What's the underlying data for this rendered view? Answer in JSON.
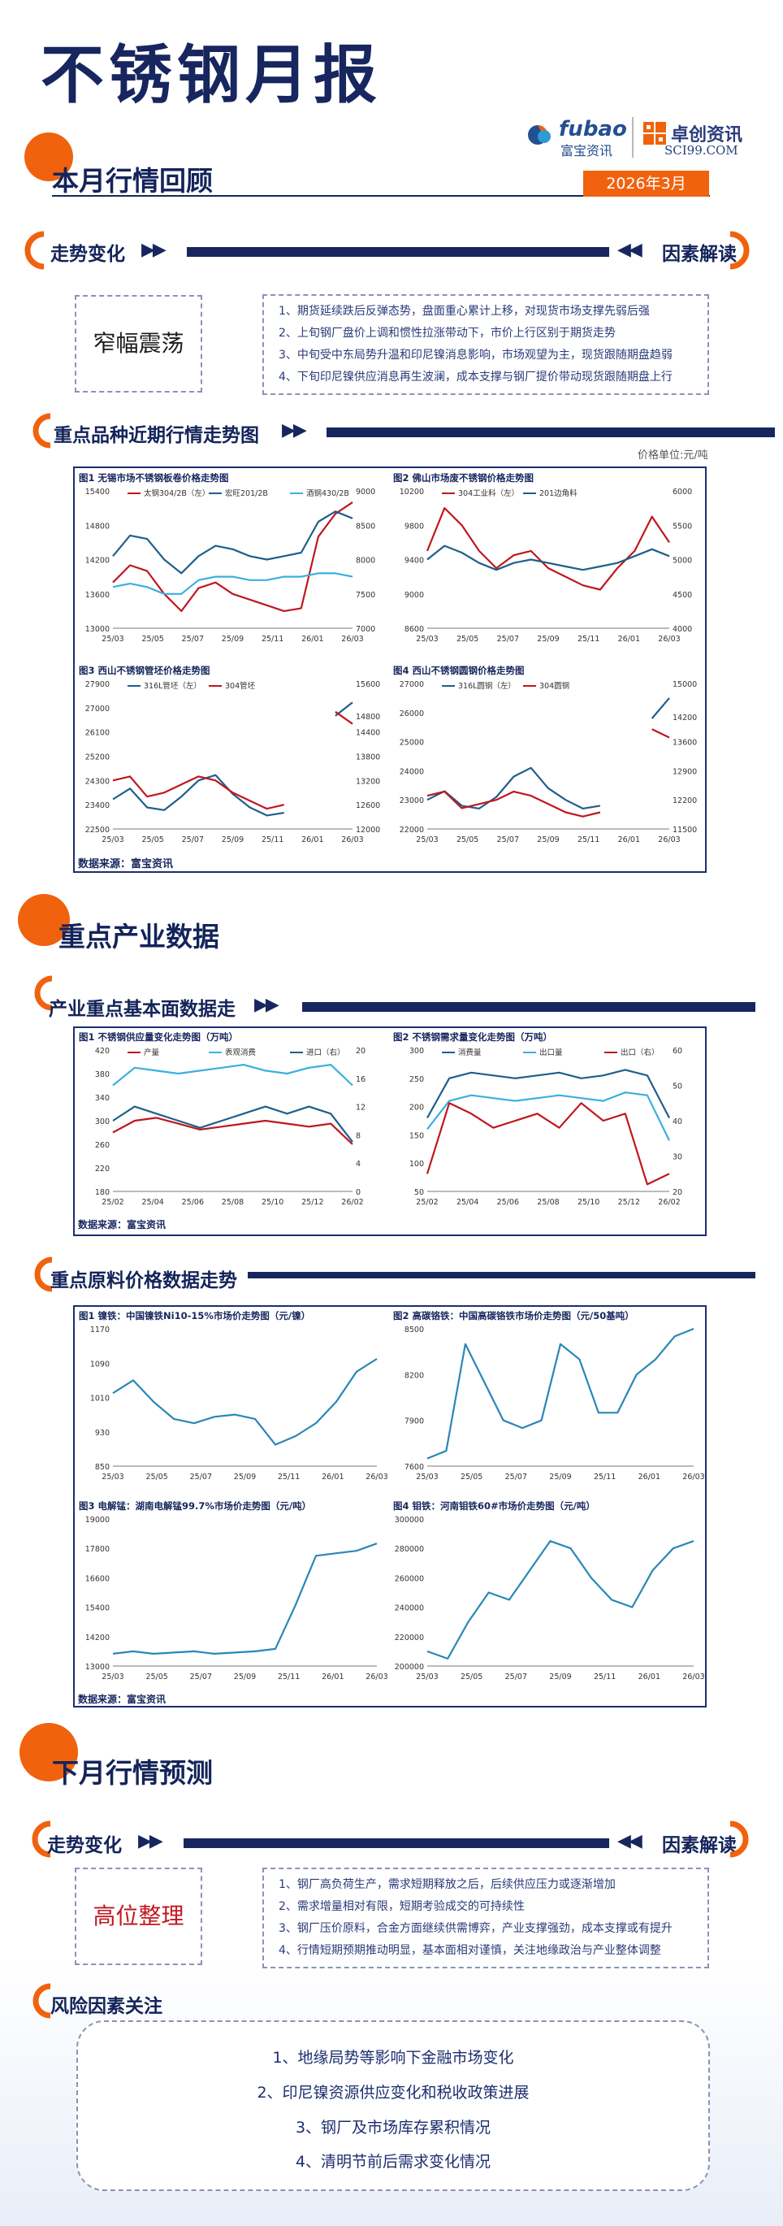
{
  "header": {
    "title": "不锈钢月报",
    "brand_fubao": "fubao",
    "brand_fubao_cn": "富宝资讯",
    "brand_sci": "卓创资讯",
    "brand_sci_url": "SCI99.COM",
    "date": "2026年3月"
  },
  "review": {
    "heading": "本月行情回顾",
    "trend_label": "走势变化",
    "factor_label": "因素解读",
    "trend_word": "窄幅震荡",
    "factors": [
      "1、期货延续跌后反弹态势，盘面重心累计上移，对现货市场支撑先弱后强",
      "2、上旬钢厂盘价上调和惯性拉涨带动下，市价上行区别于期货走势",
      "3、中旬受中东局势升温和印尼镍消息影响，市场观望为主，现货跟随期盘趋弱",
      "4、下旬印尼镍供应消息再生波澜，成本支撑与钢厂提价带动现货跟随期盘上行"
    ],
    "price_heading": "重点品种近期行情走势图",
    "unit_note": "价格单位:元/吨",
    "source": "数据来源：富宝资讯"
  },
  "industry": {
    "heading": "重点产业数据",
    "fundamental_heading": "产业重点基本面数据走",
    "source": "数据来源：富宝资讯",
    "raw_heading": "重点原料价格数据走势",
    "raw_source": "数据来源：富宝资讯"
  },
  "forecast": {
    "heading": "下月行情预测",
    "trend_label": "走势变化",
    "factor_label": "因素解读",
    "trend_word": "高位整理",
    "factors": [
      "1、钢厂高负荷生产，需求短期释放之后，后续供应压力或逐渐增加",
      "2、需求增量相对有限，短期考验成交的可持续性",
      "3、钢厂压价原料，合金方面继续供需博弈，产业支撑强劲，成本支撑或有提升",
      "4、行情短期预期推动明显，基本面相对谨慎，关注地缘政治与产业整体调整"
    ],
    "risk_heading": "风险因素关注",
    "risks": [
      "1、地缘局势等影响下金融市场变化",
      "2、印尼镍资源供应变化和税收政策进展",
      "3、钢厂及市场库存累积情况",
      "4、清明节前后需求变化情况"
    ]
  },
  "chart_data": [
    {
      "type": "line",
      "title": "图1 无锡市场不锈钢板卷价格走势图",
      "x_ticks": [
        "25/03",
        "25/05",
        "25/07",
        "25/09",
        "25/11",
        "26/01",
        "26/03"
      ],
      "left_ticks": [
        "15400",
        "14800",
        "14200",
        "13600",
        "13000"
      ],
      "right_ticks": [
        "9000",
        "8500",
        "8000",
        "7500",
        "7000"
      ],
      "series": [
        {
          "name": "太钢304/2B（左）",
          "color": "#c0171f",
          "axis": "left",
          "values": [
            13800,
            14100,
            14000,
            13600,
            13300,
            13700,
            13800,
            13600,
            13500,
            13400,
            13300,
            13350,
            14600,
            15000,
            15200
          ]
        },
        {
          "name": "宏旺201/2B",
          "color": "#1f5f8b",
          "axis": "right",
          "values": [
            8050,
            8350,
            8300,
            8000,
            7800,
            8050,
            8200,
            8150,
            8050,
            8000,
            8050,
            8100,
            8550,
            8700,
            8600
          ]
        },
        {
          "name": "酒钢430/2B",
          "color": "#3ab0de",
          "axis": "right",
          "values": [
            7600,
            7650,
            7600,
            7500,
            7500,
            7700,
            7750,
            7750,
            7700,
            7700,
            7750,
            7750,
            7800,
            7800,
            7750
          ]
        }
      ]
    },
    {
      "type": "line",
      "title": "图2 佛山市场废不锈钢价格走势图",
      "x_ticks": [
        "25/03",
        "25/05",
        "25/07",
        "25/09",
        "25/11",
        "26/01",
        "26/03"
      ],
      "left_ticks": [
        "10200",
        "9800",
        "9400",
        "9000",
        "8600"
      ],
      "right_ticks": [
        "6000",
        "5500",
        "5000",
        "4500",
        "4000"
      ],
      "series": [
        {
          "name": "304工业料（左）",
          "color": "#c0171f",
          "axis": "left",
          "values": [
            9500,
            10000,
            9800,
            9500,
            9300,
            9450,
            9500,
            9300,
            9200,
            9100,
            9050,
            9300,
            9500,
            9900,
            9600
          ]
        },
        {
          "name": "201边角料",
          "color": "#1f5f8b",
          "axis": "right",
          "values": [
            5000,
            5200,
            5100,
            4950,
            4850,
            4950,
            5000,
            4950,
            4900,
            4850,
            4900,
            4950,
            5050,
            5150,
            5050
          ]
        }
      ]
    },
    {
      "type": "line",
      "title": "图3 西山不锈钢管坯价格走势图",
      "x_ticks": [
        "25/03",
        "25/05",
        "25/07",
        "25/09",
        "25/11",
        "26/01",
        "26/03"
      ],
      "left_ticks": [
        "27900",
        "27000",
        "26100",
        "25200",
        "24300",
        "23400",
        "22500"
      ],
      "right_ticks": [
        "15600",
        "14800",
        "14400",
        "13800",
        "13200",
        "12600",
        "12000"
      ],
      "series": [
        {
          "name": "316L管坯（左）",
          "color": "#1f5f8b",
          "axis": "left",
          "values": [
            23600,
            24000,
            23300,
            23200,
            23700,
            24300,
            24500,
            23800,
            23300,
            23000,
            23100,
            null,
            null,
            26700,
            27200
          ]
        },
        {
          "name": "304管坯",
          "color": "#c0171f",
          "axis": "right",
          "values": [
            13200,
            13300,
            12800,
            12900,
            13100,
            13300,
            13200,
            12900,
            12700,
            12500,
            12600,
            null,
            null,
            14900,
            14600
          ]
        }
      ]
    },
    {
      "type": "line",
      "title": "图4 西山不锈钢圆钢价格走势图",
      "x_ticks": [
        "25/03",
        "25/05",
        "25/07",
        "25/09",
        "25/11",
        "26/01",
        "26/03"
      ],
      "left_ticks": [
        "27000",
        "26000",
        "25000",
        "24000",
        "23000",
        "22000"
      ],
      "right_ticks": [
        "15000",
        "14200",
        "13600",
        "12900",
        "12200",
        "11500"
      ],
      "series": [
        {
          "name": "316L圆钢（左）",
          "color": "#1f5f8b",
          "axis": "left",
          "values": [
            23000,
            23300,
            22800,
            22700,
            23100,
            23800,
            24100,
            23400,
            23000,
            22700,
            22800,
            null,
            null,
            25800,
            26500
          ]
        },
        {
          "name": "304圆钢",
          "color": "#c0171f",
          "axis": "right",
          "values": [
            12300,
            12400,
            12000,
            12100,
            12200,
            12400,
            12300,
            12100,
            11900,
            11800,
            11900,
            null,
            null,
            13900,
            13700
          ]
        }
      ]
    },
    {
      "type": "line",
      "title": "图1 不锈钢供应量变化走势图（万吨）",
      "x_ticks": [
        "25/02",
        "25/04",
        "25/06",
        "25/08",
        "25/10",
        "25/12",
        "26/02"
      ],
      "left_ticks": [
        "420",
        "380",
        "340",
        "300",
        "260",
        "220",
        "180"
      ],
      "right_ticks": [
        "20",
        "16",
        "12",
        "8",
        "4",
        "0"
      ],
      "series": [
        {
          "name": "产量",
          "color": "#c0171f",
          "axis": "left",
          "values": [
            280,
            300,
            305,
            295,
            285,
            290,
            295,
            300,
            295,
            290,
            295,
            260
          ]
        },
        {
          "name": "表观消费",
          "color": "#3ab0de",
          "axis": "left",
          "values": [
            360,
            390,
            385,
            380,
            385,
            390,
            395,
            385,
            380,
            390,
            395,
            360
          ]
        },
        {
          "name": "进口（右）",
          "color": "#1f5f8b",
          "axis": "right",
          "values": [
            10,
            12,
            11,
            10,
            9,
            10,
            11,
            12,
            11,
            12,
            11,
            7
          ]
        }
      ]
    },
    {
      "type": "line",
      "title": "图2 不锈钢需求量变化走势图（万吨）",
      "x_ticks": [
        "25/02",
        "25/04",
        "25/06",
        "25/08",
        "25/10",
        "25/12",
        "26/02"
      ],
      "left_ticks": [
        "300",
        "250",
        "200",
        "150",
        "100",
        "50"
      ],
      "right_ticks": [
        "60",
        "50",
        "40",
        "30",
        "20"
      ],
      "series": [
        {
          "name": "消费量",
          "color": "#1f5f8b",
          "axis": "left",
          "values": [
            180,
            250,
            260,
            255,
            250,
            255,
            260,
            250,
            255,
            265,
            255,
            180
          ]
        },
        {
          "name": "出口量",
          "color": "#3ab0de",
          "axis": "left",
          "values": [
            160,
            210,
            220,
            215,
            210,
            215,
            220,
            215,
            210,
            225,
            220,
            140
          ]
        },
        {
          "name": "出口（右）",
          "color": "#c0171f",
          "axis": "right",
          "values": [
            25,
            45,
            42,
            38,
            40,
            42,
            38,
            45,
            40,
            42,
            22,
            25
          ]
        }
      ]
    },
    {
      "type": "line",
      "title": "图1 镍铁：中国镍铁Ni10-15%市场价走势图（元/镍）",
      "x_ticks": [
        "25/03",
        "25/05",
        "25/07",
        "25/09",
        "25/11",
        "26/01",
        "26/03"
      ],
      "left_ticks": [
        "1170",
        "1090",
        "1010",
        "930",
        "850"
      ],
      "series": [
        {
          "name": "镍铁",
          "color": "#2b86b8",
          "axis": "left",
          "values": [
            1020,
            1050,
            1000,
            960,
            950,
            965,
            970,
            960,
            900,
            920,
            950,
            1000,
            1070,
            1100
          ]
        }
      ]
    },
    {
      "type": "line",
      "title": "图2 高碳铬铁：中国高碳铬铁市场价走势图（元/50基吨）",
      "x_ticks": [
        "25/03",
        "25/05",
        "25/07",
        "25/09",
        "25/11",
        "26/01",
        "26/03"
      ],
      "left_ticks": [
        "8500",
        "8200",
        "7900",
        "7600"
      ],
      "series": [
        {
          "name": "高碳铬铁",
          "color": "#2b86b8",
          "axis": "left",
          "values": [
            7650,
            7700,
            8400,
            8150,
            7900,
            7850,
            7900,
            8400,
            8300,
            7950,
            7950,
            8200,
            8300,
            8450,
            8500
          ]
        }
      ]
    },
    {
      "type": "line",
      "title": "图3 电解锰：湖南电解锰99.7%市场价走势图（元/吨）",
      "x_ticks": [
        "25/03",
        "25/05",
        "25/07",
        "25/09",
        "25/11",
        "26/01",
        "26/03"
      ],
      "left_ticks": [
        "19000",
        "17800",
        "16600",
        "15400",
        "14200",
        "13000"
      ],
      "series": [
        {
          "name": "电解锰",
          "color": "#2b86b8",
          "axis": "left",
          "values": [
            13500,
            13600,
            13500,
            13550,
            13600,
            13500,
            13550,
            13600,
            13700,
            15500,
            17500,
            17600,
            17700,
            18000
          ]
        }
      ]
    },
    {
      "type": "line",
      "title": "图4 钼铁：河南钼铁60#市场价走势图（元/吨）",
      "x_ticks": [
        "25/03",
        "25/05",
        "25/07",
        "25/09",
        "25/11",
        "26/01",
        "26/03"
      ],
      "left_ticks": [
        "300000",
        "280000",
        "260000",
        "240000",
        "220000",
        "200000"
      ],
      "series": [
        {
          "name": "钼铁",
          "color": "#2b86b8",
          "axis": "left",
          "values": [
            210000,
            205000,
            230000,
            250000,
            245000,
            265000,
            285000,
            280000,
            260000,
            245000,
            240000,
            265000,
            280000,
            285000
          ]
        }
      ]
    }
  ]
}
